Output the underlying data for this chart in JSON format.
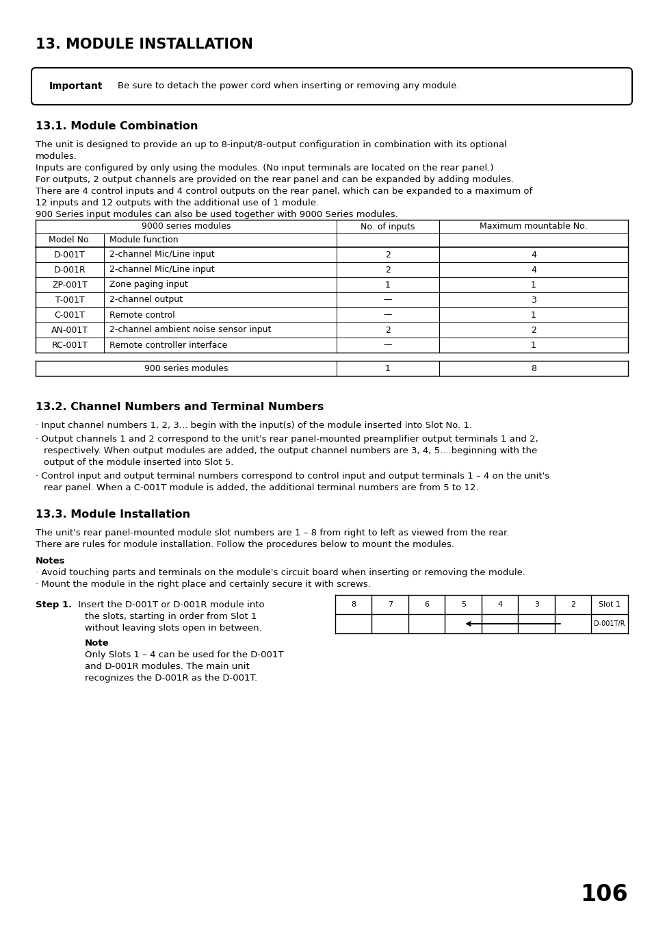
{
  "title": "13. MODULE INSTALLATION",
  "important_label": "Important",
  "important_text": "Be sure to detach the power cord when inserting or removing any module.",
  "section1_title": "13.1. Module Combination",
  "para1_line1": "The unit is designed to provide an up to 8-input/8-output configuration in combination with its optional",
  "para1_line2": "modules.",
  "para2": "Inputs are configured by only using the modules. (No input terminals are located on the rear panel.)",
  "para3": "For outputs, 2 output channels are provided on the rear panel and can be expanded by adding modules.",
  "para4_line1": "There are 4 control inputs and 4 control outputs on the rear panel, which can be expanded to a maximum of",
  "para4_line2": "12 inputs and 12 outputs with the additional use of 1 module.",
  "para5": "900 Series input modules can also be used together with 9000 Series modules.",
  "table_header_merged": "9000 series modules",
  "table_col1_header": "Model No.",
  "table_col2_header": "Module function",
  "table_col3_header": "No. of inputs",
  "table_col4_header": "Maximum mountable No.",
  "table_rows": [
    [
      "D-001T",
      "2-channel Mic/Line input",
      "2",
      "4"
    ],
    [
      "D-001R",
      "2-channel Mic/Line input",
      "2",
      "4"
    ],
    [
      "ZP-001T",
      "Zone paging input",
      "1",
      "1"
    ],
    [
      "T-001T",
      "2-channel output",
      "—",
      "3"
    ],
    [
      "C-001T",
      "Remote control",
      "—",
      "1"
    ],
    [
      "AN-001T",
      "2-channel ambient noise sensor input",
      "2",
      "2"
    ],
    [
      "RC-001T",
      "Remote controller interface",
      "—",
      "1"
    ]
  ],
  "table_footer": [
    "900 series modules",
    "1",
    "8"
  ],
  "section2_title": "13.2. Channel Numbers and Terminal Numbers",
  "s2b1": "· Input channel numbers 1, 2, 3... begin with the input(s) of the module inserted into Slot No. 1.",
  "s2b2_l1": "· Output channels 1 and 2 correspond to the unit's rear panel-mounted preamplifier output terminals 1 and 2,",
  "s2b2_l2": "   respectively. When output modules are added, the output channel numbers are 3, 4, 5....beginning with the",
  "s2b2_l3": "   output of the module inserted into Slot 5.",
  "s2b3_l1": "· Control input and output terminal numbers correspond to control input and output terminals 1 – 4 on the unit's",
  "s2b3_l2": "   rear panel. When a C-001T module is added, the additional terminal numbers are from 5 to 12.",
  "section3_title": "13.3. Module Installation",
  "s3p1": "The unit's rear panel-mounted module slot numbers are 1 – 8 from right to left as viewed from the rear.",
  "s3p2": "There are rules for module installation. Follow the procedures below to mount the modules.",
  "notes_title": "Notes",
  "notes_b1": "· Avoid touching parts and terminals on the module's circuit board when inserting or removing the module.",
  "notes_b2": "· Mount the module in the right place and certainly secure it with screws.",
  "step1_bold": "Step 1.",
  "step1_l1": " Insert the D-001T or D-001R module into",
  "step1_l2": "the slots, starting in order from Slot 1",
  "step1_l3": "without leaving slots open in between.",
  "note_title": "Note",
  "note_l1": "Only Slots 1 – 4 can be used for the D-001T",
  "note_l2": "and D-001R modules. The main unit",
  "note_l3": "recognizes the D-001R as the D-001T.",
  "slot_labels": [
    "8",
    "7",
    "6",
    "5",
    "4",
    "3",
    "2",
    "Slot 1"
  ],
  "slot_module_label": "D-001T/R",
  "page_number": "106"
}
